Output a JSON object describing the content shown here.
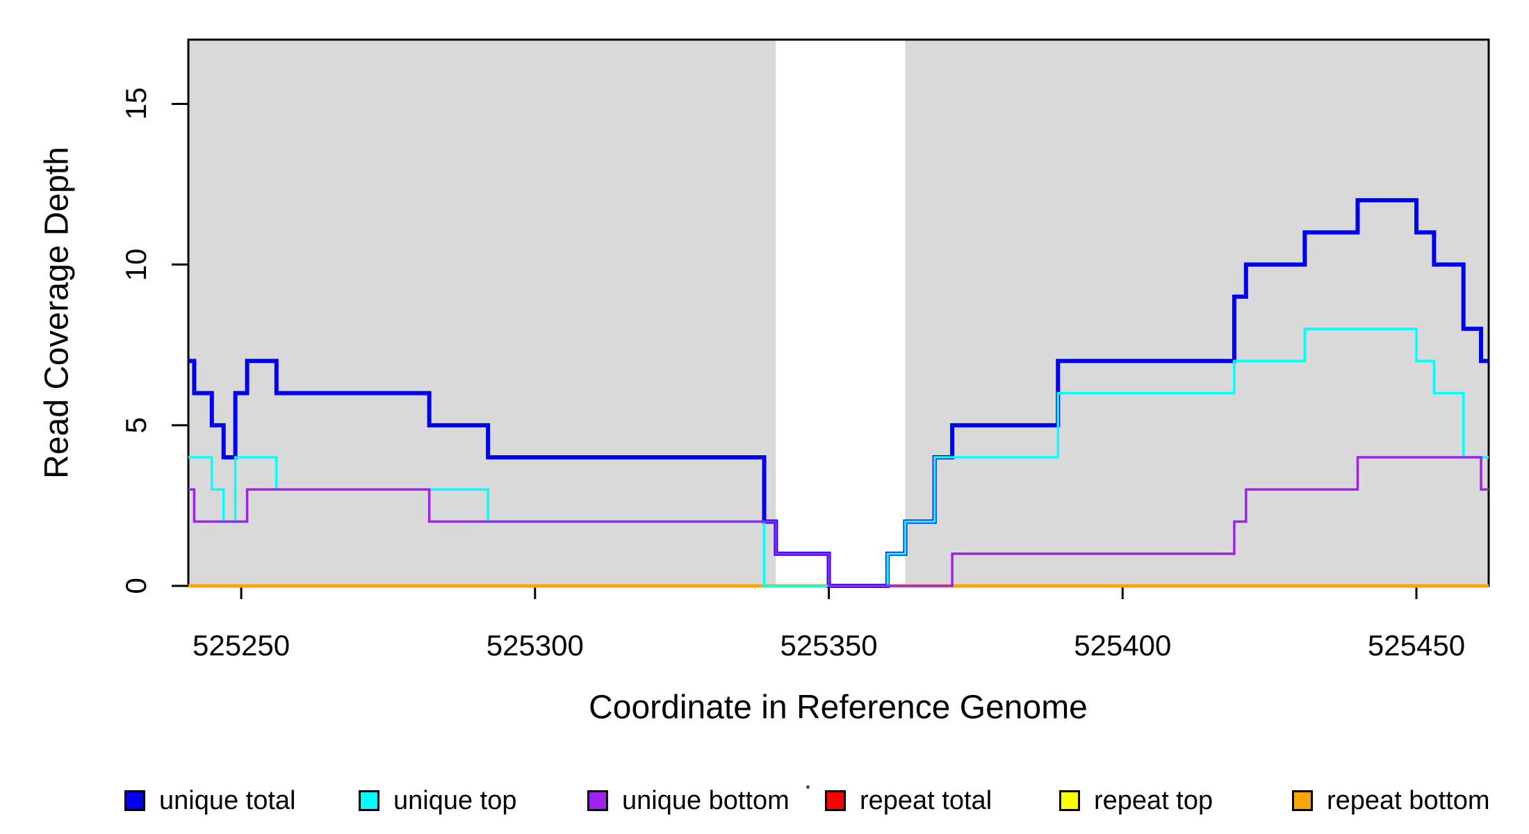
{
  "chart_data": {
    "type": "line",
    "subtype": "step-coverage-plot",
    "title": "",
    "xlabel": "Coordinate in Reference Genome",
    "ylabel": "Read Coverage Depth",
    "xlim": [
      525241,
      525462.3
    ],
    "ylim": [
      0,
      17
    ],
    "x_ticks": [
      525250,
      525300,
      525350,
      525400,
      525450
    ],
    "y_ticks": [
      0,
      5,
      10,
      15
    ],
    "grid": false,
    "legend_position": "bottom",
    "colors": {
      "background": "#ffffff",
      "shaded_region": "#d9d9d9",
      "axis": "#000000",
      "blue": "#0000f0",
      "cyan": "#00ffff",
      "purple": "#a020f0",
      "red": "#ff0000",
      "yellow": "#ffff00",
      "orange": "#ffa500"
    },
    "shaded_regions": [
      {
        "start": 525241,
        "end": 525341
      },
      {
        "start": 525363,
        "end": 525462.3
      }
    ],
    "series": [
      {
        "name": "repeat total",
        "color": "#ff0000",
        "width": 3.5,
        "segments": [
          [
            525241,
            525462.3,
            0
          ]
        ]
      },
      {
        "name": "repeat top",
        "color": "#ffff00",
        "width": 3.5,
        "segments": [
          [
            525241,
            525462.3,
            0
          ]
        ]
      },
      {
        "name": "repeat bottom",
        "color": "#ffa500",
        "width": 5,
        "segments": [
          [
            525241,
            525462.3,
            0
          ]
        ]
      },
      {
        "name": "unique total",
        "color": "#0000f0",
        "width": 6,
        "segments": [
          [
            525241,
            525242,
            7
          ],
          [
            525242,
            525245,
            6
          ],
          [
            525245,
            525247,
            5
          ],
          [
            525247,
            525249,
            4
          ],
          [
            525249,
            525251,
            6
          ],
          [
            525251,
            525256,
            7
          ],
          [
            525256,
            525282,
            6
          ],
          [
            525282,
            525292,
            5
          ],
          [
            525292,
            525339,
            4
          ],
          [
            525339,
            525341,
            2
          ],
          [
            525341,
            525350,
            1
          ],
          [
            525350,
            525360,
            0
          ],
          [
            525360,
            525363,
            1
          ],
          [
            525363,
            525368,
            2
          ],
          [
            525368,
            525371,
            4
          ],
          [
            525371,
            525389,
            5
          ],
          [
            525389,
            525419,
            7
          ],
          [
            525419,
            525421,
            9
          ],
          [
            525421,
            525431,
            10
          ],
          [
            525431,
            525440,
            11
          ],
          [
            525440,
            525450,
            12
          ],
          [
            525450,
            525453,
            11
          ],
          [
            525453,
            525458,
            10
          ],
          [
            525458,
            525461,
            8
          ],
          [
            525461,
            525462.3,
            7
          ]
        ]
      },
      {
        "name": "unique top",
        "color": "#00ffff",
        "width": 3.5,
        "segments": [
          [
            525241,
            525245,
            4
          ],
          [
            525245,
            525247,
            3
          ],
          [
            525247,
            525249,
            2
          ],
          [
            525249,
            525256,
            4
          ],
          [
            525256,
            525292,
            3
          ],
          [
            525292,
            525339,
            2
          ],
          [
            525339,
            525360,
            0
          ],
          [
            525360,
            525363,
            1
          ],
          [
            525363,
            525368,
            2
          ],
          [
            525368,
            525389,
            4
          ],
          [
            525389,
            525419,
            6
          ],
          [
            525419,
            525431,
            7
          ],
          [
            525431,
            525450,
            8
          ],
          [
            525450,
            525453,
            7
          ],
          [
            525453,
            525458,
            6
          ],
          [
            525458,
            525462.3,
            4
          ]
        ]
      },
      {
        "name": "unique bottom",
        "color": "#a020f0",
        "width": 3.5,
        "segments": [
          [
            525241,
            525242,
            3
          ],
          [
            525242,
            525251,
            2
          ],
          [
            525251,
            525282,
            3
          ],
          [
            525282,
            525341,
            2
          ],
          [
            525341,
            525350,
            1
          ],
          [
            525350,
            525371,
            0
          ],
          [
            525371,
            525419,
            1
          ],
          [
            525419,
            525421,
            2
          ],
          [
            525421,
            525440,
            3
          ],
          [
            525440,
            525461,
            4
          ],
          [
            525461,
            525462.3,
            3
          ]
        ]
      }
    ],
    "legend": [
      {
        "label": "unique total",
        "color": "#0000f0"
      },
      {
        "label": "unique top",
        "color": "#00ffff"
      },
      {
        "label": "unique bottom",
        "color": "#a020f0"
      },
      {
        "label": "repeat total",
        "color": "#ff0000"
      },
      {
        "label": "repeat top",
        "color": "#ffff00"
      },
      {
        "label": "repeat bottom",
        "color": "#ffa500"
      }
    ]
  }
}
